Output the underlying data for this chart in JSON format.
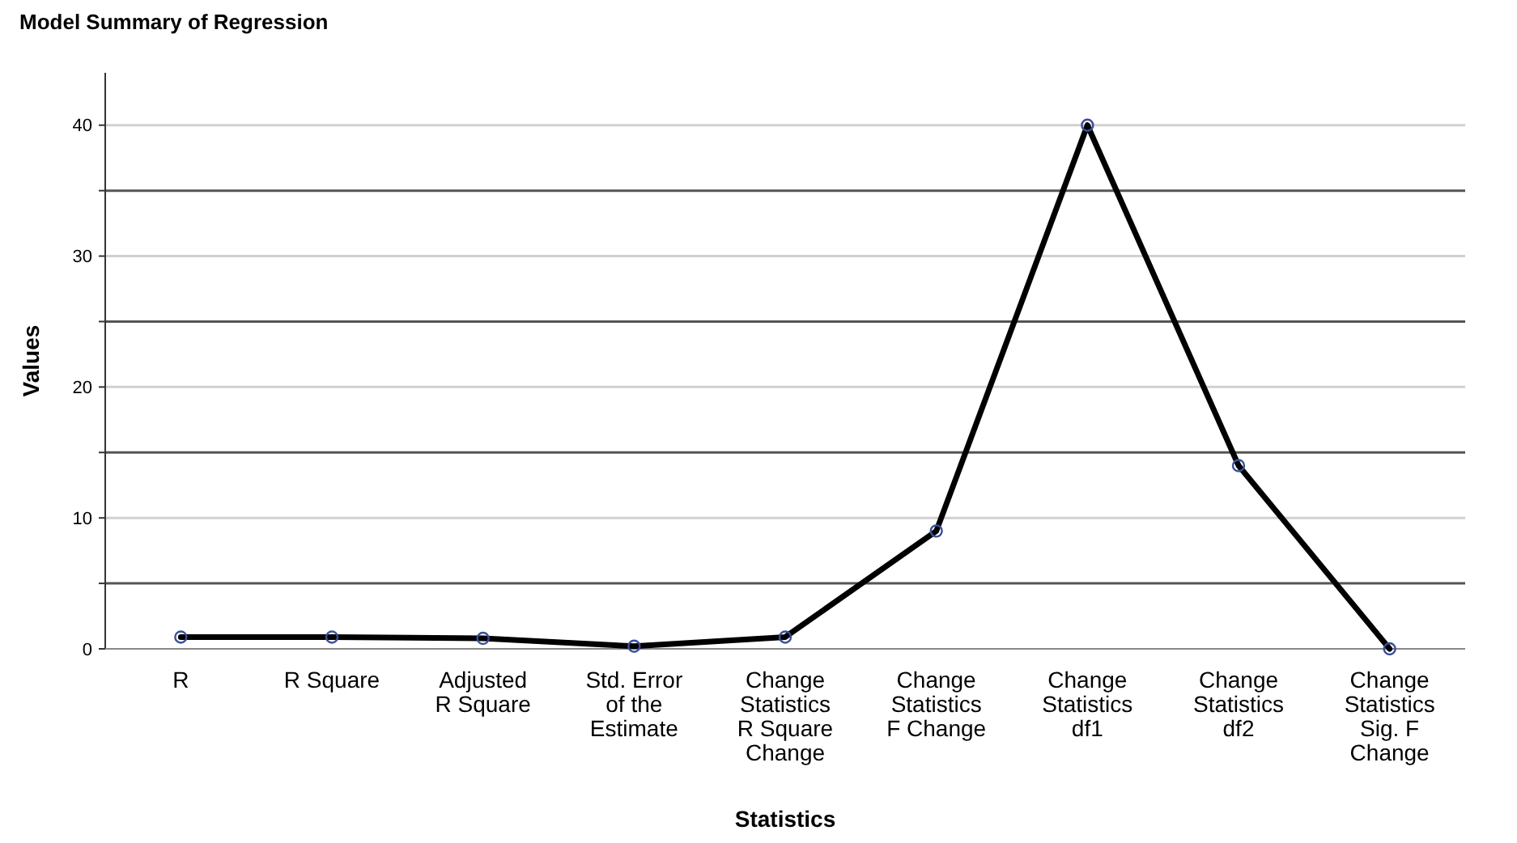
{
  "chart_data": {
    "type": "line",
    "title": "Model Summary of Regression",
    "xlabel": "Statistics",
    "ylabel": "Values",
    "categories": [
      "R",
      "R Square",
      "Adjusted\nR Square",
      "Std. Error\nof the\nEstimate",
      "Change\nStatistics\nR Square\nChange",
      "Change\nStatistics\nF Change",
      "Change\nStatistics\ndf1",
      "Change\nStatistics\ndf2",
      "Change\nStatistics\nSig. F\nChange"
    ],
    "series": [
      {
        "color": "#000000",
        "values": [
          0.9,
          0.9,
          0.8,
          0.2,
          0.9,
          9,
          40,
          14,
          0
        ]
      }
    ],
    "ylim": [
      0,
      44
    ],
    "yticks": [
      0,
      {
        "value": 5,
        "label": null
      },
      10,
      {
        "value": 15,
        "label": null
      },
      20,
      {
        "value": 25,
        "label": null
      },
      30,
      {
        "value": 35,
        "label": null
      },
      40
    ],
    "grid": "y",
    "marker": "circle",
    "line_style": "solid"
  }
}
